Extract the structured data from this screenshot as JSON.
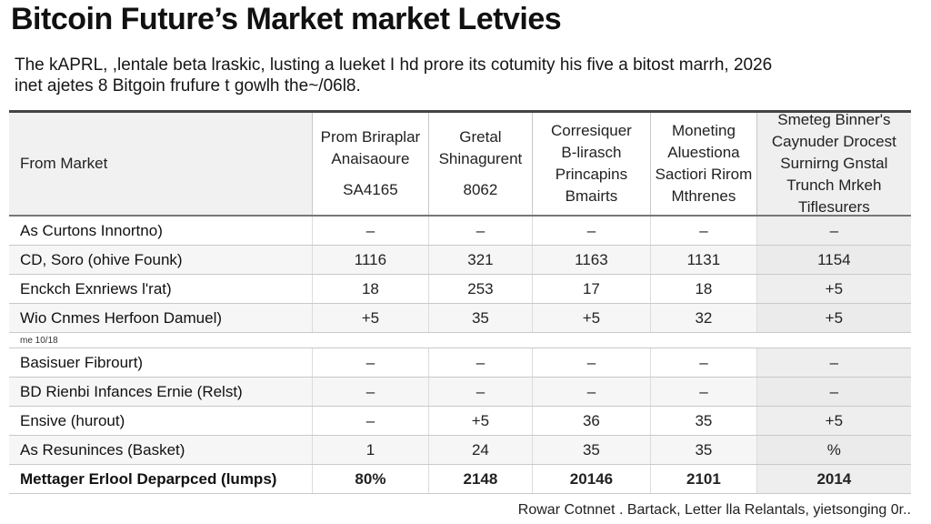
{
  "title": "Bitcoin Future’s Market market Letvies",
  "subtitle": {
    "line1": "The kAPRL, ,lentale beta lraskic, lusting a lueket I hd prore its cotumity his five a bitost marrh, 2026",
    "line2": "inet ajetes 8 Bitgoin frufure t gowlh the~/06l8."
  },
  "table": {
    "headers": [
      {
        "lines": [
          "From Market"
        ],
        "code": ""
      },
      {
        "lines": [
          "Prom Briraplar",
          "Anaisaoure"
        ],
        "code": "SA4165"
      },
      {
        "lines": [
          "Gretal",
          "Shinagurent"
        ],
        "code": "8062"
      },
      {
        "lines": [
          "Corresiquer",
          "B-lirasch",
          "Princapins",
          "Bmairts"
        ],
        "code": ""
      },
      {
        "lines": [
          "Moneting",
          "Aluestiona",
          "Sactiori Rirom",
          "Mthrenes"
        ],
        "code": ""
      },
      {
        "lines": [
          "Smeteg Binner's",
          "Caynuder Drocest",
          "Surnirng Gnstal",
          "Trunch Mrkeh",
          "Tiflesurers"
        ],
        "code": ""
      }
    ],
    "rows_top": [
      {
        "label": "As Curtons Innortno)",
        "cells": [
          "–",
          "–",
          "–",
          "–",
          "–"
        ]
      },
      {
        "label": "CD, Soro (ohive Founk)",
        "cells": [
          "1116",
          "321",
          "1163",
          "1131",
          "1154"
        ]
      },
      {
        "label": "Enckch Exnriews l'rat)",
        "cells": [
          "18",
          "253",
          "17",
          "18",
          "+5"
        ]
      },
      {
        "label": "Wio Cnmes Herfoon Damuel)",
        "cells": [
          "+5",
          "35",
          "+5",
          "32",
          "+5"
        ]
      }
    ],
    "note": "me 10/18",
    "rows_bottom": [
      {
        "label": "Basisuer Fibrourt)",
        "cells": [
          "–",
          "–",
          "–",
          "–",
          "–"
        ]
      },
      {
        "label": "BD Rienbi Infances Ernie (Relst)",
        "cells": [
          "–",
          "–",
          "–",
          "–",
          "–"
        ]
      },
      {
        "label": "Ensive (hurout)",
        "cells": [
          "–",
          "+5",
          "36",
          "35",
          "+5"
        ]
      },
      {
        "label": "As Resuninces (Basket)",
        "cells": [
          "1",
          "24",
          "35",
          "35",
          "%"
        ]
      },
      {
        "label": "Mettager Erlool Deparpced (lumps)",
        "cells": [
          "80%",
          "2148",
          "20146",
          "2101",
          "2014"
        ]
      }
    ]
  },
  "footer": "Rowar Cotnnet . Bartack, Letter lla Relantals, yietsonging 0r.."
}
